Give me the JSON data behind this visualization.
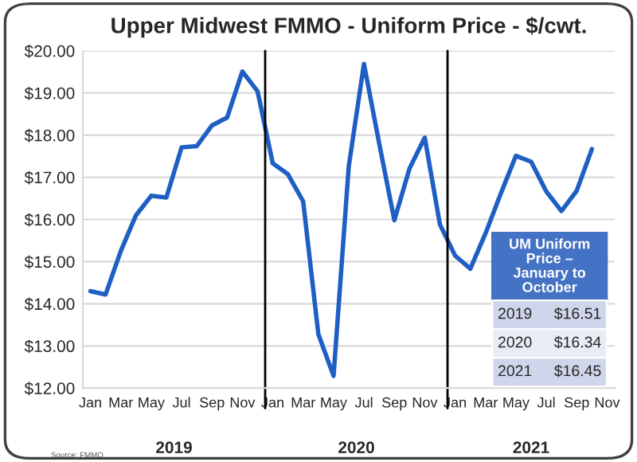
{
  "chart_data": {
    "type": "line",
    "title": "Upper Midwest FMMO - Uniform Price - $/cwt.",
    "categories": [
      "Jan",
      null,
      "Mar",
      null,
      "May",
      null,
      "Jul",
      null,
      "Sep",
      null,
      "Nov",
      null,
      "Jan",
      null,
      "Mar",
      null,
      "May",
      null,
      "Jul",
      null,
      "Sep",
      null,
      "Nov",
      null,
      "Jan",
      null,
      "Mar",
      null,
      "May",
      null,
      "Jul",
      null,
      "Sep",
      null,
      "Nov"
    ],
    "series": [
      {
        "color": "#1f5fc4",
        "values": [
          14.3,
          14.22,
          15.25,
          16.1,
          16.56,
          16.52,
          17.71,
          17.74,
          18.23,
          18.42,
          19.51,
          19.04,
          17.33,
          17.07,
          16.43,
          13.28,
          12.29,
          17.26,
          19.69,
          17.81,
          15.98,
          17.21,
          17.94,
          15.88,
          15.14,
          14.83,
          15.67,
          16.61,
          17.51,
          17.37,
          16.66,
          16.2,
          16.68,
          17.67,
          null
        ]
      }
    ],
    "ylim": [
      12,
      20
    ],
    "yticks": [
      {
        "value": 12,
        "label": "$12.00"
      },
      {
        "value": 13,
        "label": "$13.00"
      },
      {
        "value": 14,
        "label": "$14.00"
      },
      {
        "value": 15,
        "label": "$15.00"
      },
      {
        "value": 16,
        "label": "$16.00"
      },
      {
        "value": 17,
        "label": "$17.00"
      },
      {
        "value": 18,
        "label": "$18.00"
      },
      {
        "value": 19,
        "label": "$19.00"
      },
      {
        "value": 20,
        "label": "$20.00"
      }
    ],
    "grid": "y",
    "marker": "none",
    "line_style": "solid",
    "legend": false,
    "annotations": [
      "2019",
      "2020",
      "2021",
      "Source: FMMO",
      "UM Uniform Price – January to October",
      "2019",
      "$16.51",
      "2020",
      "$16.34",
      "2021",
      "$16.45"
    ]
  }
}
